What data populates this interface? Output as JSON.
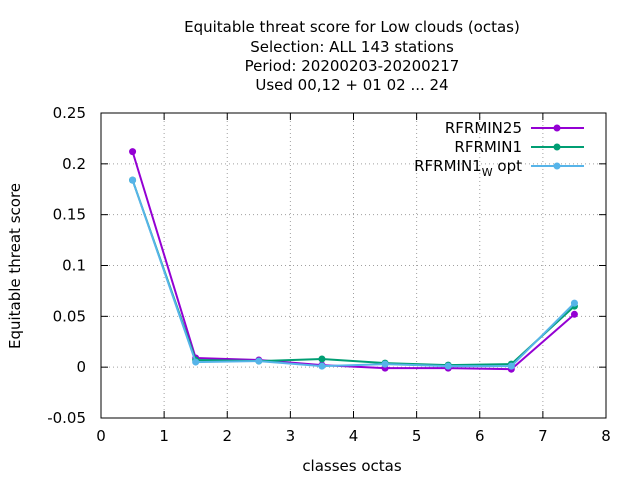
{
  "chart_data": {
    "type": "line",
    "title_lines": [
      "Equitable threat score  for Low clouds (octas)",
      "Selection: ALL    143 stations",
      "Period: 20200203-20200217",
      "Used  00,12  + 01 02 ... 24"
    ],
    "xlabel": "classes octas",
    "ylabel": "Equitable threat score",
    "xlim": [
      0,
      8
    ],
    "ylim": [
      -0.05,
      0.25
    ],
    "x_ticks": [
      0,
      1,
      2,
      3,
      4,
      5,
      6,
      7,
      8
    ],
    "x_tick_labels": [
      "0",
      "1",
      "2",
      "3",
      "4",
      "5",
      "6",
      "7",
      "8"
    ],
    "y_ticks": [
      -0.05,
      0,
      0.05,
      0.1,
      0.15,
      0.2,
      0.25
    ],
    "y_tick_labels": [
      "-0.05",
      "0",
      "0.05",
      "0.1",
      "0.15",
      "0.2",
      "0.25"
    ],
    "grid": true,
    "legend_position": "top-right",
    "x": [
      0.5,
      1.5,
      2.5,
      3.5,
      4.5,
      5.5,
      6.5,
      7.5
    ],
    "series": [
      {
        "name": "RFRMIN25",
        "color": "#9400d3",
        "values": [
          0.212,
          0.009,
          0.007,
          0.002,
          -0.001,
          -0.001,
          -0.002,
          0.052
        ]
      },
      {
        "name": "RFRMIN1",
        "color": "#009e73",
        "values": [
          0.184,
          0.007,
          0.006,
          0.008,
          0.004,
          0.002,
          0.003,
          0.06
        ]
      },
      {
        "name": "RFRMIN1",
        "name_subscript": "W",
        "name_suffix": "opt",
        "color": "#56b4e9",
        "values": [
          0.184,
          0.005,
          0.006,
          0.001,
          0.003,
          0.001,
          0.001,
          0.063
        ]
      }
    ]
  }
}
